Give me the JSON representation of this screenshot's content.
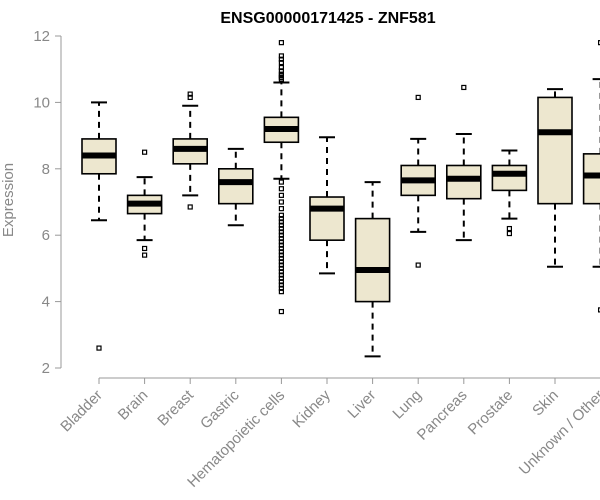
{
  "chart_data": {
    "type": "boxplot",
    "title": "ENSG00000171425 - ZNF581",
    "xlabel": "",
    "ylabel": "Expression",
    "ylim": [
      2,
      12
    ],
    "yticks": [
      2,
      4,
      6,
      8,
      10,
      12
    ],
    "categories": [
      "Bladder",
      "Brain",
      "Breast",
      "Gastric",
      "Hematopoietic cells",
      "Kidney",
      "Liver",
      "Lung",
      "Pancreas",
      "Prostate",
      "Skin",
      "Unknown / Other"
    ],
    "boxes": [
      {
        "min": 6.45,
        "q1": 7.85,
        "median": 8.4,
        "q3": 8.9,
        "max": 10.0,
        "outliers": [
          2.6
        ]
      },
      {
        "min": 5.85,
        "q1": 6.65,
        "median": 6.95,
        "q3": 7.2,
        "max": 7.75,
        "outliers": [
          8.5,
          5.6,
          5.4
        ]
      },
      {
        "min": 7.2,
        "q1": 8.15,
        "median": 8.6,
        "q3": 8.9,
        "max": 9.9,
        "outliers": [
          10.25,
          10.15,
          6.85
        ]
      },
      {
        "min": 6.3,
        "q1": 6.95,
        "median": 7.6,
        "q3": 8.0,
        "max": 8.6,
        "outliers": []
      },
      {
        "min": 7.7,
        "q1": 8.8,
        "median": 9.2,
        "q3": 9.55,
        "max": 10.6,
        "outliers": [
          11.8,
          11.4,
          11.3,
          11.2,
          11.05,
          10.95,
          10.85,
          10.8,
          10.75,
          10.7,
          7.6,
          7.4,
          7.2,
          7.0,
          6.8,
          6.6,
          6.5,
          6.4,
          6.3,
          6.2,
          6.1,
          6.0,
          5.9,
          5.8,
          5.7,
          5.6,
          5.5,
          5.4,
          5.3,
          5.2,
          5.1,
          5.0,
          4.9,
          4.8,
          4.7,
          4.6,
          4.5,
          4.4,
          4.3,
          3.7
        ]
      },
      {
        "min": 4.85,
        "q1": 5.85,
        "median": 6.8,
        "q3": 7.15,
        "max": 8.95,
        "outliers": []
      },
      {
        "min": 2.35,
        "q1": 4.0,
        "median": 4.95,
        "q3": 6.5,
        "max": 7.6,
        "outliers": []
      },
      {
        "min": 6.1,
        "q1": 7.2,
        "median": 7.65,
        "q3": 8.1,
        "max": 8.9,
        "outliers": [
          10.15,
          5.1
        ]
      },
      {
        "min": 5.85,
        "q1": 7.1,
        "median": 7.7,
        "q3": 8.1,
        "max": 9.05,
        "outliers": [
          10.45
        ]
      },
      {
        "min": 6.5,
        "q1": 7.35,
        "median": 7.85,
        "q3": 8.1,
        "max": 8.55,
        "outliers": [
          6.2,
          6.05
        ]
      },
      {
        "min": 5.05,
        "q1": 6.95,
        "median": 9.1,
        "q3": 10.15,
        "max": 10.4,
        "outliers": []
      },
      {
        "min": 5.05,
        "q1": 6.95,
        "median": 7.8,
        "q3": 8.45,
        "max": 10.7,
        "outliers": [
          11.8,
          3.75
        ]
      }
    ],
    "box_fill": "#ede7cf",
    "grid": false,
    "legend": "none"
  }
}
